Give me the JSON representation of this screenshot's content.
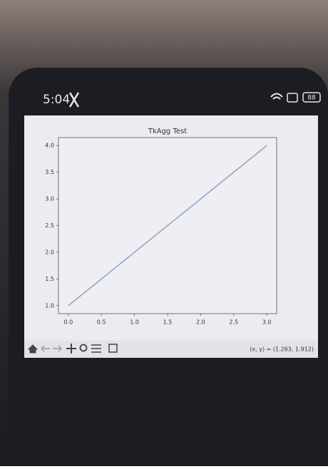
{
  "status_bar": {
    "time": "5:04",
    "battery": "88"
  },
  "chart_data": {
    "type": "line",
    "title": "TkAgg Test",
    "x": [
      0,
      1,
      2,
      3
    ],
    "series": [
      {
        "color": "#8fa8cf",
        "values": [
          1,
          2,
          3,
          4
        ]
      }
    ],
    "xlim": [
      -0.15,
      3.15
    ],
    "ylim": [
      0.85,
      4.15
    ],
    "xticks": [
      {
        "value": 0,
        "label": "0.0"
      },
      0.5,
      {
        "value": 1,
        "label": "1.0"
      },
      1.5,
      {
        "value": 2,
        "label": "2.0"
      },
      2.5,
      {
        "value": 3,
        "label": "3.0"
      }
    ],
    "yticks": [
      {
        "value": 1,
        "label": "1.0"
      },
      1.5,
      {
        "value": 2,
        "label": "2.0"
      },
      2.5,
      {
        "value": 3,
        "label": "3.0"
      },
      3.5,
      {
        "value": 4,
        "label": "4.0"
      }
    ],
    "grid": false
  },
  "toolbar": {
    "coordinates": "(x, y) = (1.263, 1.912)"
  }
}
